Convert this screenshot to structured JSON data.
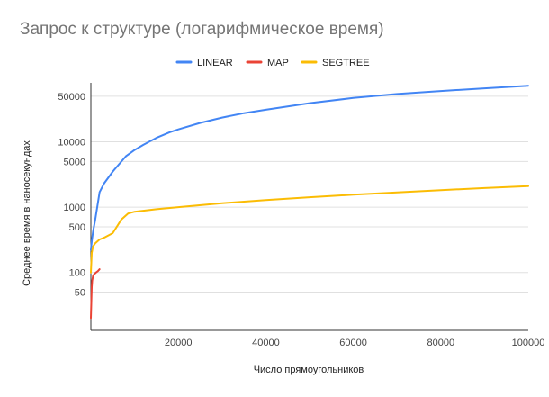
{
  "chart_data": {
    "type": "line",
    "title": "Запрос к структуре (логарифмическое время)",
    "xlabel": "Число прямоугольников",
    "ylabel": "Среднее время в наносекундах",
    "yscale": "log",
    "xlim": [
      0,
      100000
    ],
    "ylim": [
      13,
      80000
    ],
    "grid": "horizontal",
    "legend_position": "top",
    "x_ticks": [
      20000,
      40000,
      60000,
      80000,
      100000
    ],
    "x_tick_labels": [
      "20000",
      "40000",
      "60000",
      "80000",
      "100000"
    ],
    "y_ticks": [
      50,
      100,
      500,
      1000,
      5000,
      10000,
      50000
    ],
    "y_tick_labels": [
      "50",
      "100",
      "500",
      "1000",
      "5000",
      "10000",
      "50000"
    ],
    "series": [
      {
        "name": "LINEAR",
        "color": "#4285f4",
        "x": [
          0,
          200,
          500,
          1000,
          2000,
          3000,
          5000,
          8000,
          10000,
          12000,
          15000,
          18000,
          20000,
          25000,
          30000,
          35000,
          40000,
          50000,
          60000,
          70000,
          80000,
          90000,
          100000
        ],
        "y": [
          220,
          300,
          420,
          650,
          1700,
          2300,
          3500,
          6000,
          7500,
          9000,
          11500,
          14000,
          15500,
          19500,
          23500,
          27500,
          31000,
          39000,
          47000,
          54000,
          60000,
          66000,
          72000
        ]
      },
      {
        "name": "MAP",
        "color": "#ea4335",
        "x": [
          0,
          100,
          200,
          300,
          500,
          800,
          1200,
          1600,
          2000
        ],
        "y": [
          20,
          35,
          60,
          75,
          88,
          95,
          100,
          105,
          112
        ]
      },
      {
        "name": "SEGTREE",
        "color": "#fbbc04",
        "x": [
          0,
          200,
          500,
          1000,
          2000,
          3000,
          5000,
          7000,
          8500,
          10000,
          15000,
          20000,
          30000,
          40000,
          50000,
          60000,
          70000,
          80000,
          90000,
          100000
        ],
        "y": [
          100,
          200,
          250,
          280,
          320,
          340,
          400,
          650,
          800,
          850,
          930,
          1000,
          1150,
          1280,
          1420,
          1550,
          1680,
          1820,
          1960,
          2100
        ]
      }
    ]
  }
}
